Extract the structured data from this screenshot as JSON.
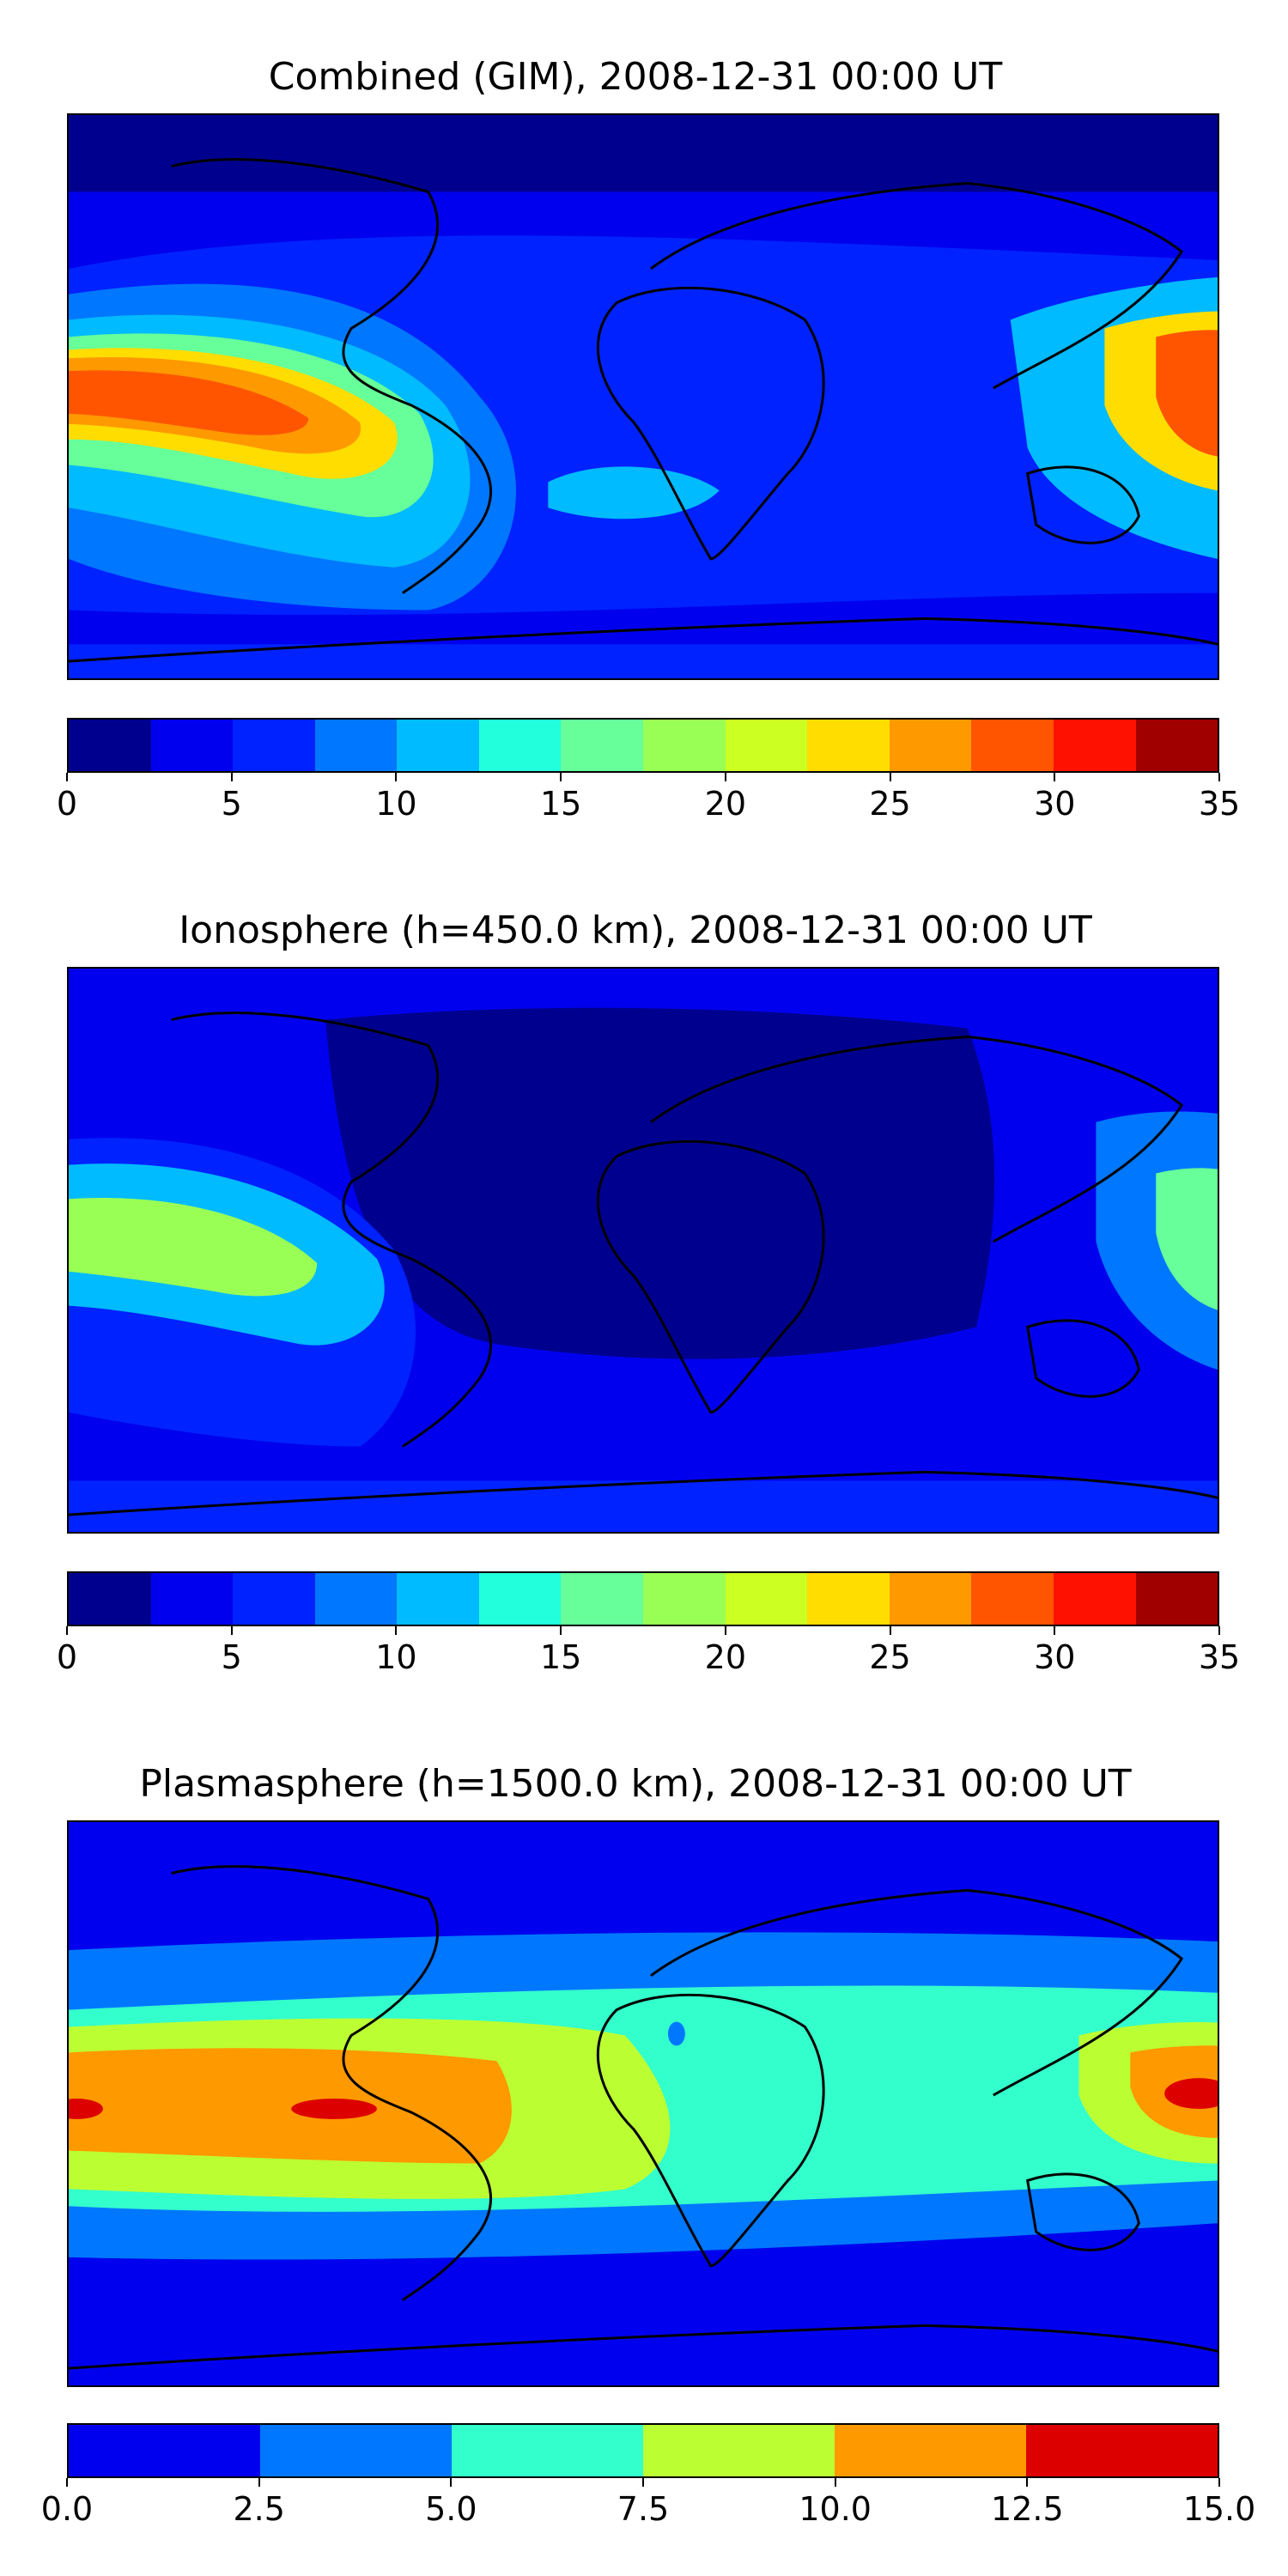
{
  "panels": [
    {
      "title": "Combined (GIM), 2008-12-31 00:00 UT",
      "colorbar": {
        "colors": [
          "#00008f",
          "#0000ee",
          "#0022ff",
          "#0077ff",
          "#00bbff",
          "#22ffdd",
          "#66ff99",
          "#99ff55",
          "#ccff22",
          "#ffdd00",
          "#ff9900",
          "#ff5500",
          "#ff1100",
          "#a00000"
        ],
        "tick_labels": [
          "0",
          "5",
          "10",
          "15",
          "20",
          "25",
          "30",
          "35"
        ],
        "range": [
          0,
          35
        ]
      }
    },
    {
      "title": "Ionosphere  (h=450.0 km), 2008-12-31 00:00 UT",
      "colorbar": {
        "colors": [
          "#00008f",
          "#0000ee",
          "#0022ff",
          "#0077ff",
          "#00bbff",
          "#22ffdd",
          "#66ff99",
          "#99ff55",
          "#ccff22",
          "#ffdd00",
          "#ff9900",
          "#ff5500",
          "#ff1100",
          "#a00000"
        ],
        "tick_labels": [
          "0",
          "5",
          "10",
          "15",
          "20",
          "25",
          "30",
          "35"
        ],
        "range": [
          0,
          35
        ]
      }
    },
    {
      "title": "Plasmasphere (h=1500.0 km), 2008-12-31 00:00 UT",
      "colorbar": {
        "colors": [
          "#0000ee",
          "#0077ff",
          "#33ffcc",
          "#bbff33",
          "#ff9900",
          "#dd0000"
        ],
        "tick_labels": [
          "0.0",
          "2.5",
          "5.0",
          "7.5",
          "10.0",
          "12.5",
          "15.0"
        ],
        "range": [
          0,
          15
        ]
      }
    }
  ]
}
